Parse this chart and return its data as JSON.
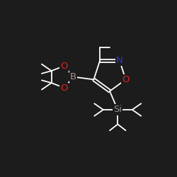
{
  "background_color": "#1c1c1c",
  "bond_color": "#ffffff",
  "atom_colors": {
    "B": "#b09090",
    "O": "#dd2222",
    "N": "#3333cc",
    "Si": "#909090",
    "C": "#ffffff"
  },
  "font_size_atom": 9.5,
  "figsize": [
    2.5,
    2.5
  ],
  "dpi": 100
}
